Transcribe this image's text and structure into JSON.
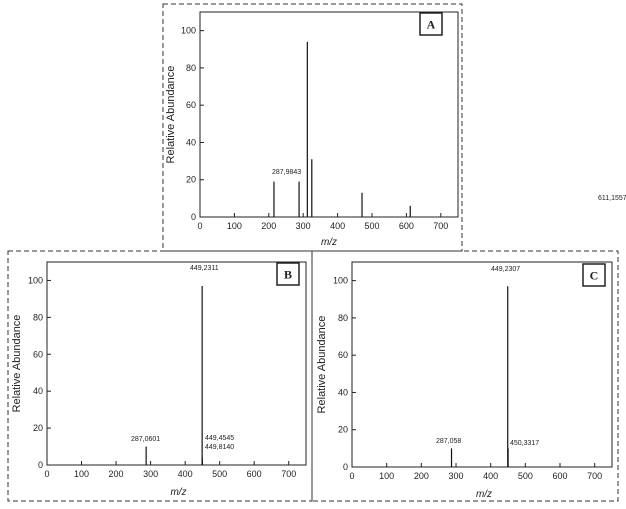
{
  "chart_data": [
    {
      "type": "bar",
      "panel_label": "A",
      "xlabel": "m/z",
      "ylabel": "Relative Abundance",
      "xlim": [
        0,
        750
      ],
      "ylim": [
        0,
        110
      ],
      "xticks": [
        0,
        100,
        200,
        300,
        400,
        500,
        600,
        700
      ],
      "yticks": [
        0,
        20,
        40,
        60,
        80,
        100
      ],
      "peaks": [
        {
          "x": 215,
          "y": 19
        },
        {
          "x": 287.9843,
          "y": 19,
          "label": "287,9843"
        },
        {
          "x": 312,
          "y": 94
        },
        {
          "x": 325,
          "y": 31
        },
        {
          "x": 471,
          "y": 13
        },
        {
          "x": 611.1557,
          "y": 6,
          "label": "611,1557"
        }
      ]
    },
    {
      "type": "bar",
      "panel_label": "B",
      "xlabel": "m/z",
      "ylabel": "Relative Abundance",
      "xlim": [
        0,
        750
      ],
      "ylim": [
        0,
        110
      ],
      "xticks": [
        0,
        100,
        200,
        300,
        400,
        500,
        600,
        700
      ],
      "yticks": [
        0,
        20,
        40,
        60,
        80,
        100
      ],
      "peaks": [
        {
          "x": 287.0601,
          "y": 10,
          "label": "287,0601"
        },
        {
          "x": 449.2311,
          "y": 97,
          "label": "449,2311"
        },
        {
          "x": 449.4545,
          "y": 4,
          "label": "449,4545"
        },
        {
          "x": 449.814,
          "y": 2,
          "label": "449,8140"
        }
      ]
    },
    {
      "type": "bar",
      "panel_label": "C",
      "xlabel": "m/z",
      "ylabel": "Relative Abundance",
      "xlim": [
        0,
        750
      ],
      "ylim": [
        0,
        110
      ],
      "xticks": [
        0,
        100,
        200,
        300,
        400,
        500,
        600,
        700
      ],
      "yticks": [
        0,
        20,
        40,
        60,
        80,
        100
      ],
      "peaks": [
        {
          "x": 287.058,
          "y": 10,
          "label": "287,058"
        },
        {
          "x": 449.2307,
          "y": 97,
          "label": "449,2307"
        },
        {
          "x": 450.3317,
          "y": 10,
          "label": "450,3317"
        }
      ]
    }
  ]
}
